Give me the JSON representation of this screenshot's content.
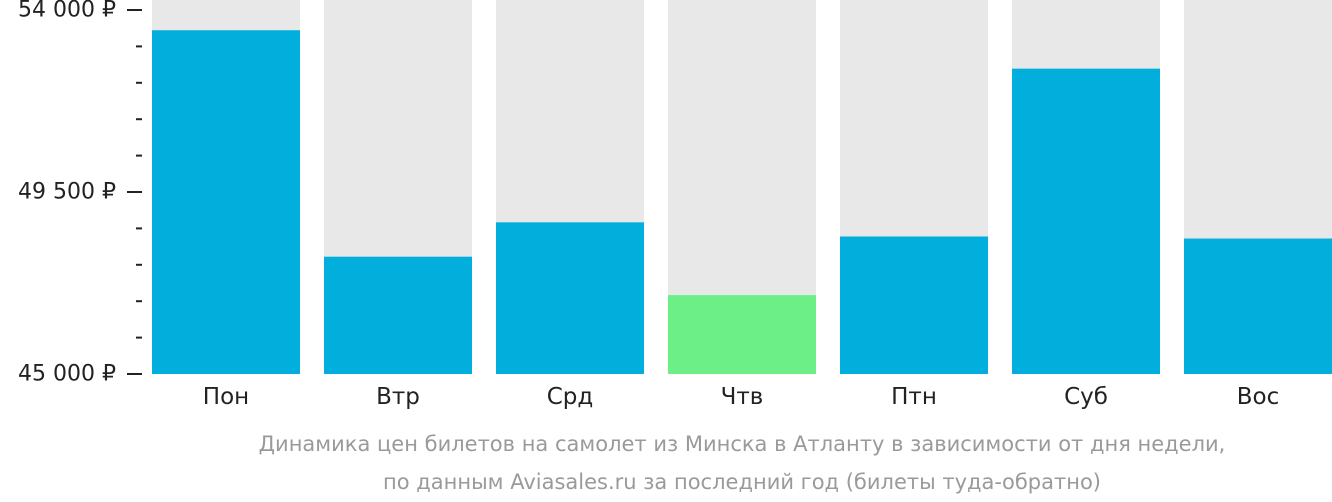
{
  "chart_data": {
    "type": "bar",
    "categories": [
      "Пон",
      "Втр",
      "Срд",
      "Чтв",
      "Птн",
      "Суб",
      "Вос"
    ],
    "values": [
      53500,
      47900,
      48750,
      46950,
      48400,
      52550,
      48350
    ],
    "highlight_index": 3,
    "ylim": [
      45000,
      54000
    ],
    "yticks": [
      {
        "value": 54000,
        "label": "54 000 ₽"
      },
      {
        "value": 49500,
        "label": "49 500 ₽"
      },
      {
        "value": 45000,
        "label": "45 000 ₽"
      }
    ],
    "minor_tick_step": 900,
    "grid": false,
    "colors": {
      "bar": "#02afdc",
      "highlight": "#6bef86",
      "background_bar": "#e8e8e8",
      "axis": "#222222"
    }
  },
  "caption": {
    "line1": "Динамика цен билетов на самолет из Минска в Атланту в зависимости от дня недели,",
    "line2": "по данным Aviasales.ru за последний год (билеты туда-обратно)"
  }
}
